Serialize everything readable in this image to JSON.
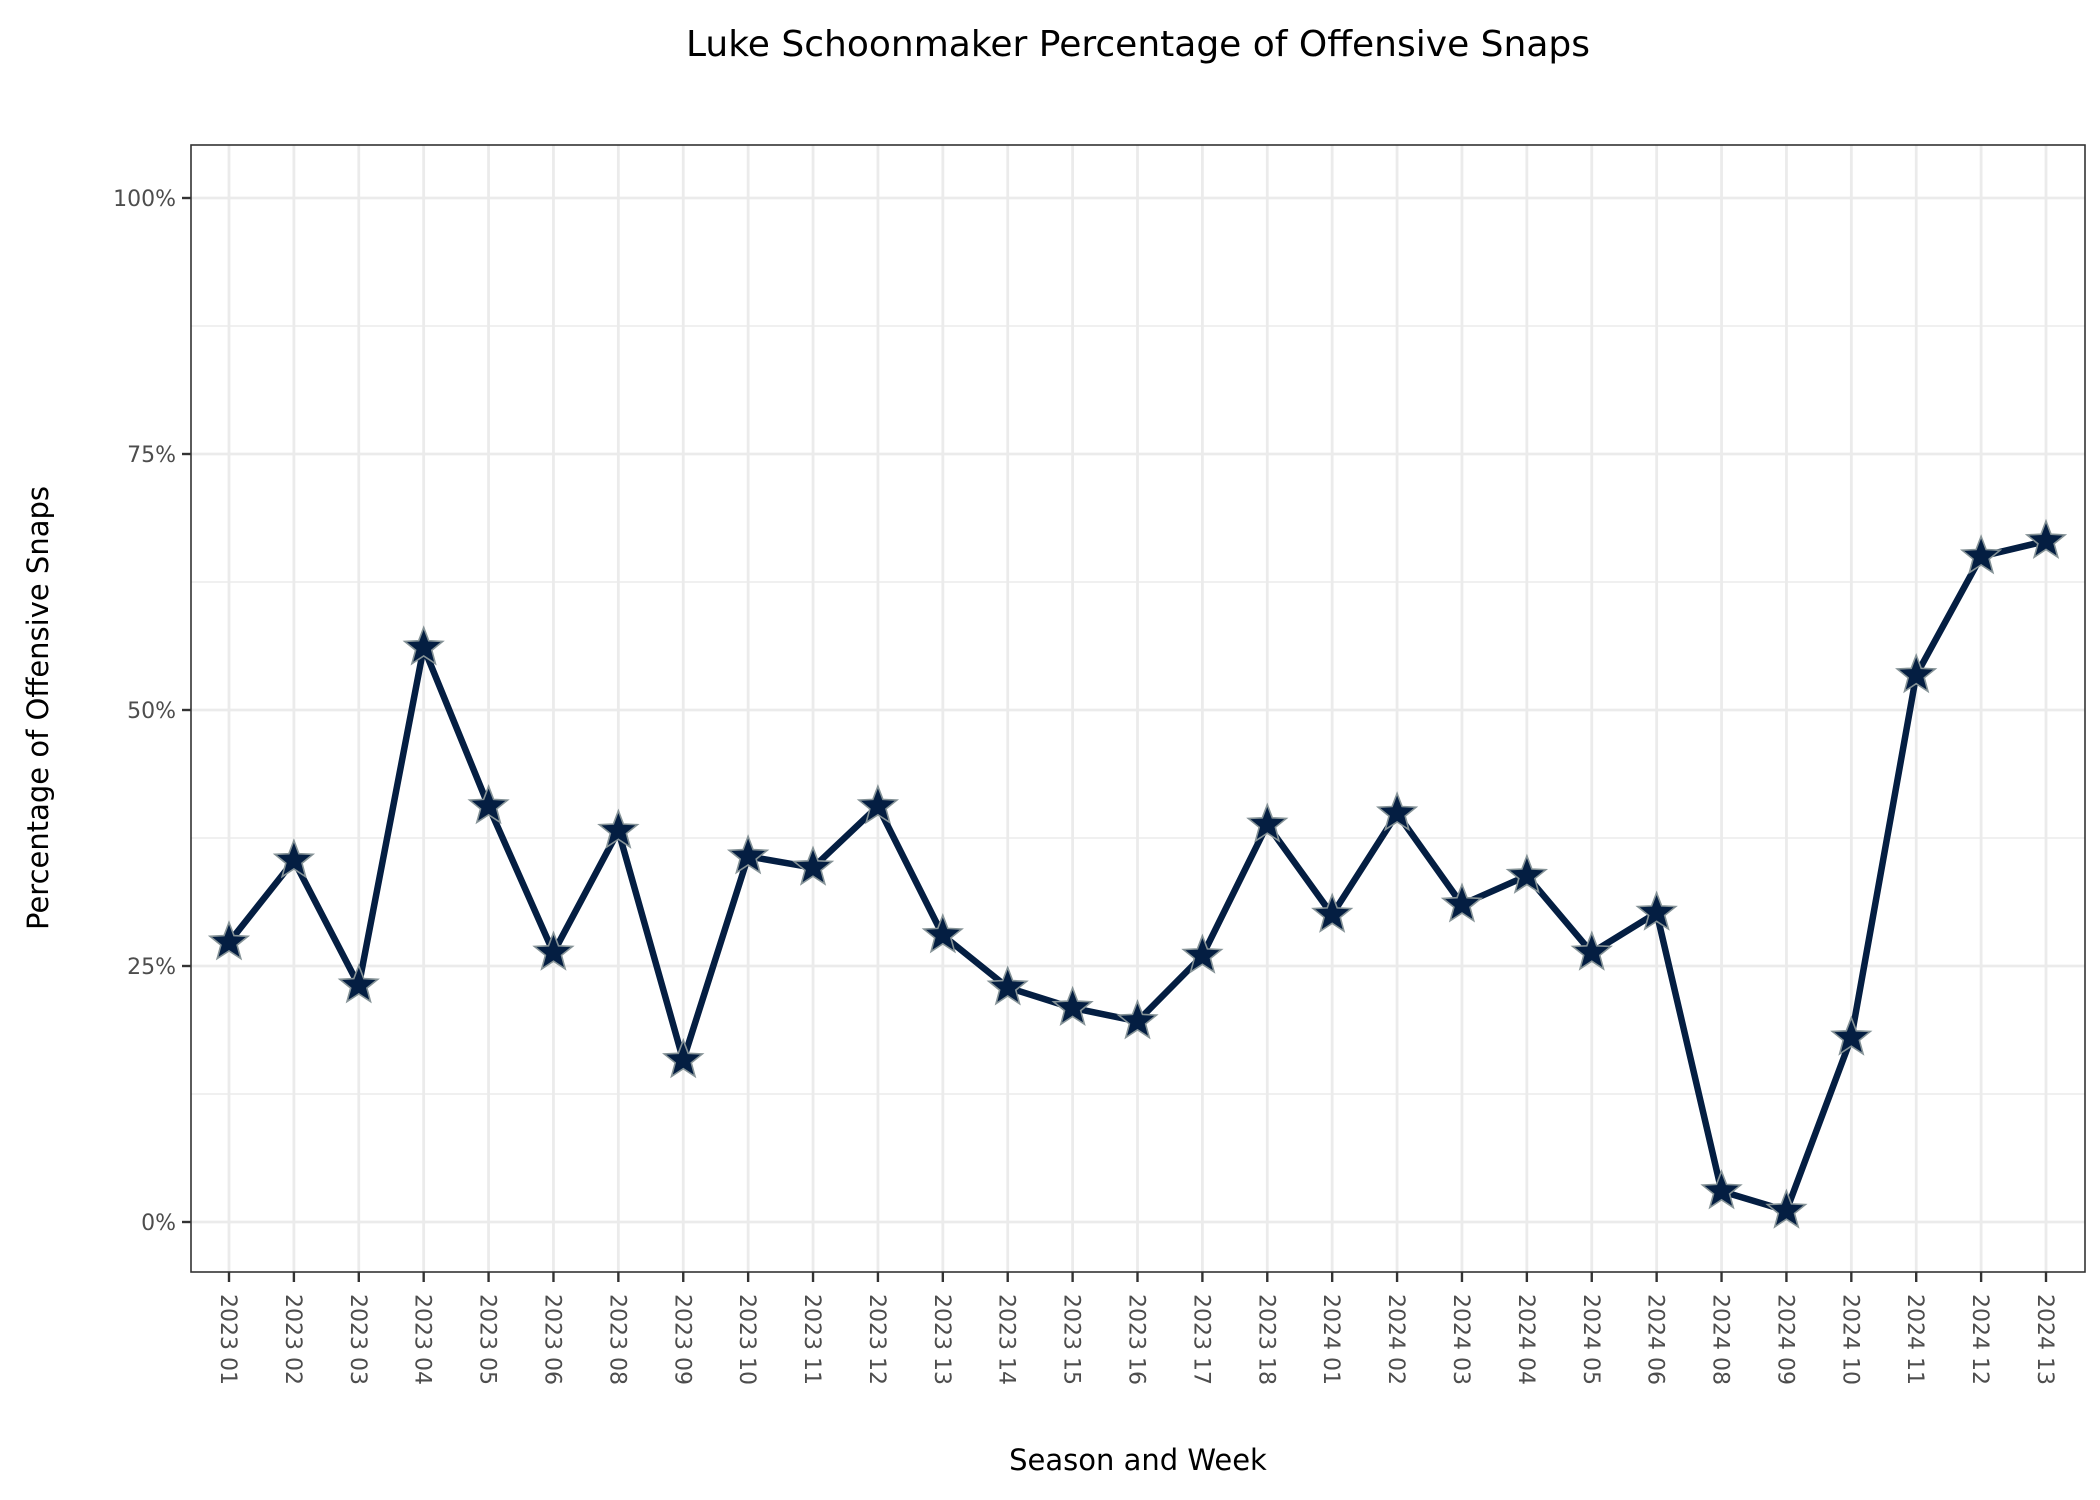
{
  "chart_data": {
    "type": "line",
    "title": "Luke Schoonmaker Percentage of Offensive Snaps",
    "xlabel": "Season and Week",
    "ylabel": "Percentage of Offensive Snaps",
    "categories": [
      "2023 01",
      "2023 02",
      "2023 03",
      "2023 04",
      "2023 05",
      "2023 06",
      "2023 08",
      "2023 09",
      "2023 10",
      "2023 11",
      "2023 12",
      "2023 13",
      "2023 14",
      "2023 15",
      "2023 16",
      "2023 17",
      "2023 18",
      "2024 01",
      "2024 02",
      "2024 03",
      "2024 04",
      "2024 05",
      "2024 06",
      "2024 08",
      "2024 09",
      "2024 10",
      "2024 11",
      "2024 12",
      "2024 13"
    ],
    "values": [
      27.3,
      35.3,
      23.1,
      56.1,
      40.6,
      26.3,
      38.2,
      15.8,
      35.7,
      34.6,
      40.6,
      28.0,
      22.9,
      20.9,
      19.6,
      26.0,
      38.8,
      30.0,
      39.9,
      31.0,
      33.8,
      26.3,
      30.2,
      3.0,
      1.1,
      18.0,
      53.4,
      65.0,
      66.5
    ],
    "ylim": [
      -5,
      105
    ],
    "yticks": [
      0,
      25,
      50,
      75,
      100
    ],
    "ytick_labels": [
      "0%",
      "25%",
      "50%",
      "75%",
      "100%"
    ],
    "grid": true,
    "marker": "star",
    "colors": {
      "line": "#041E42",
      "marker_fill": "#041E42",
      "marker_edge": "#869397"
    }
  }
}
